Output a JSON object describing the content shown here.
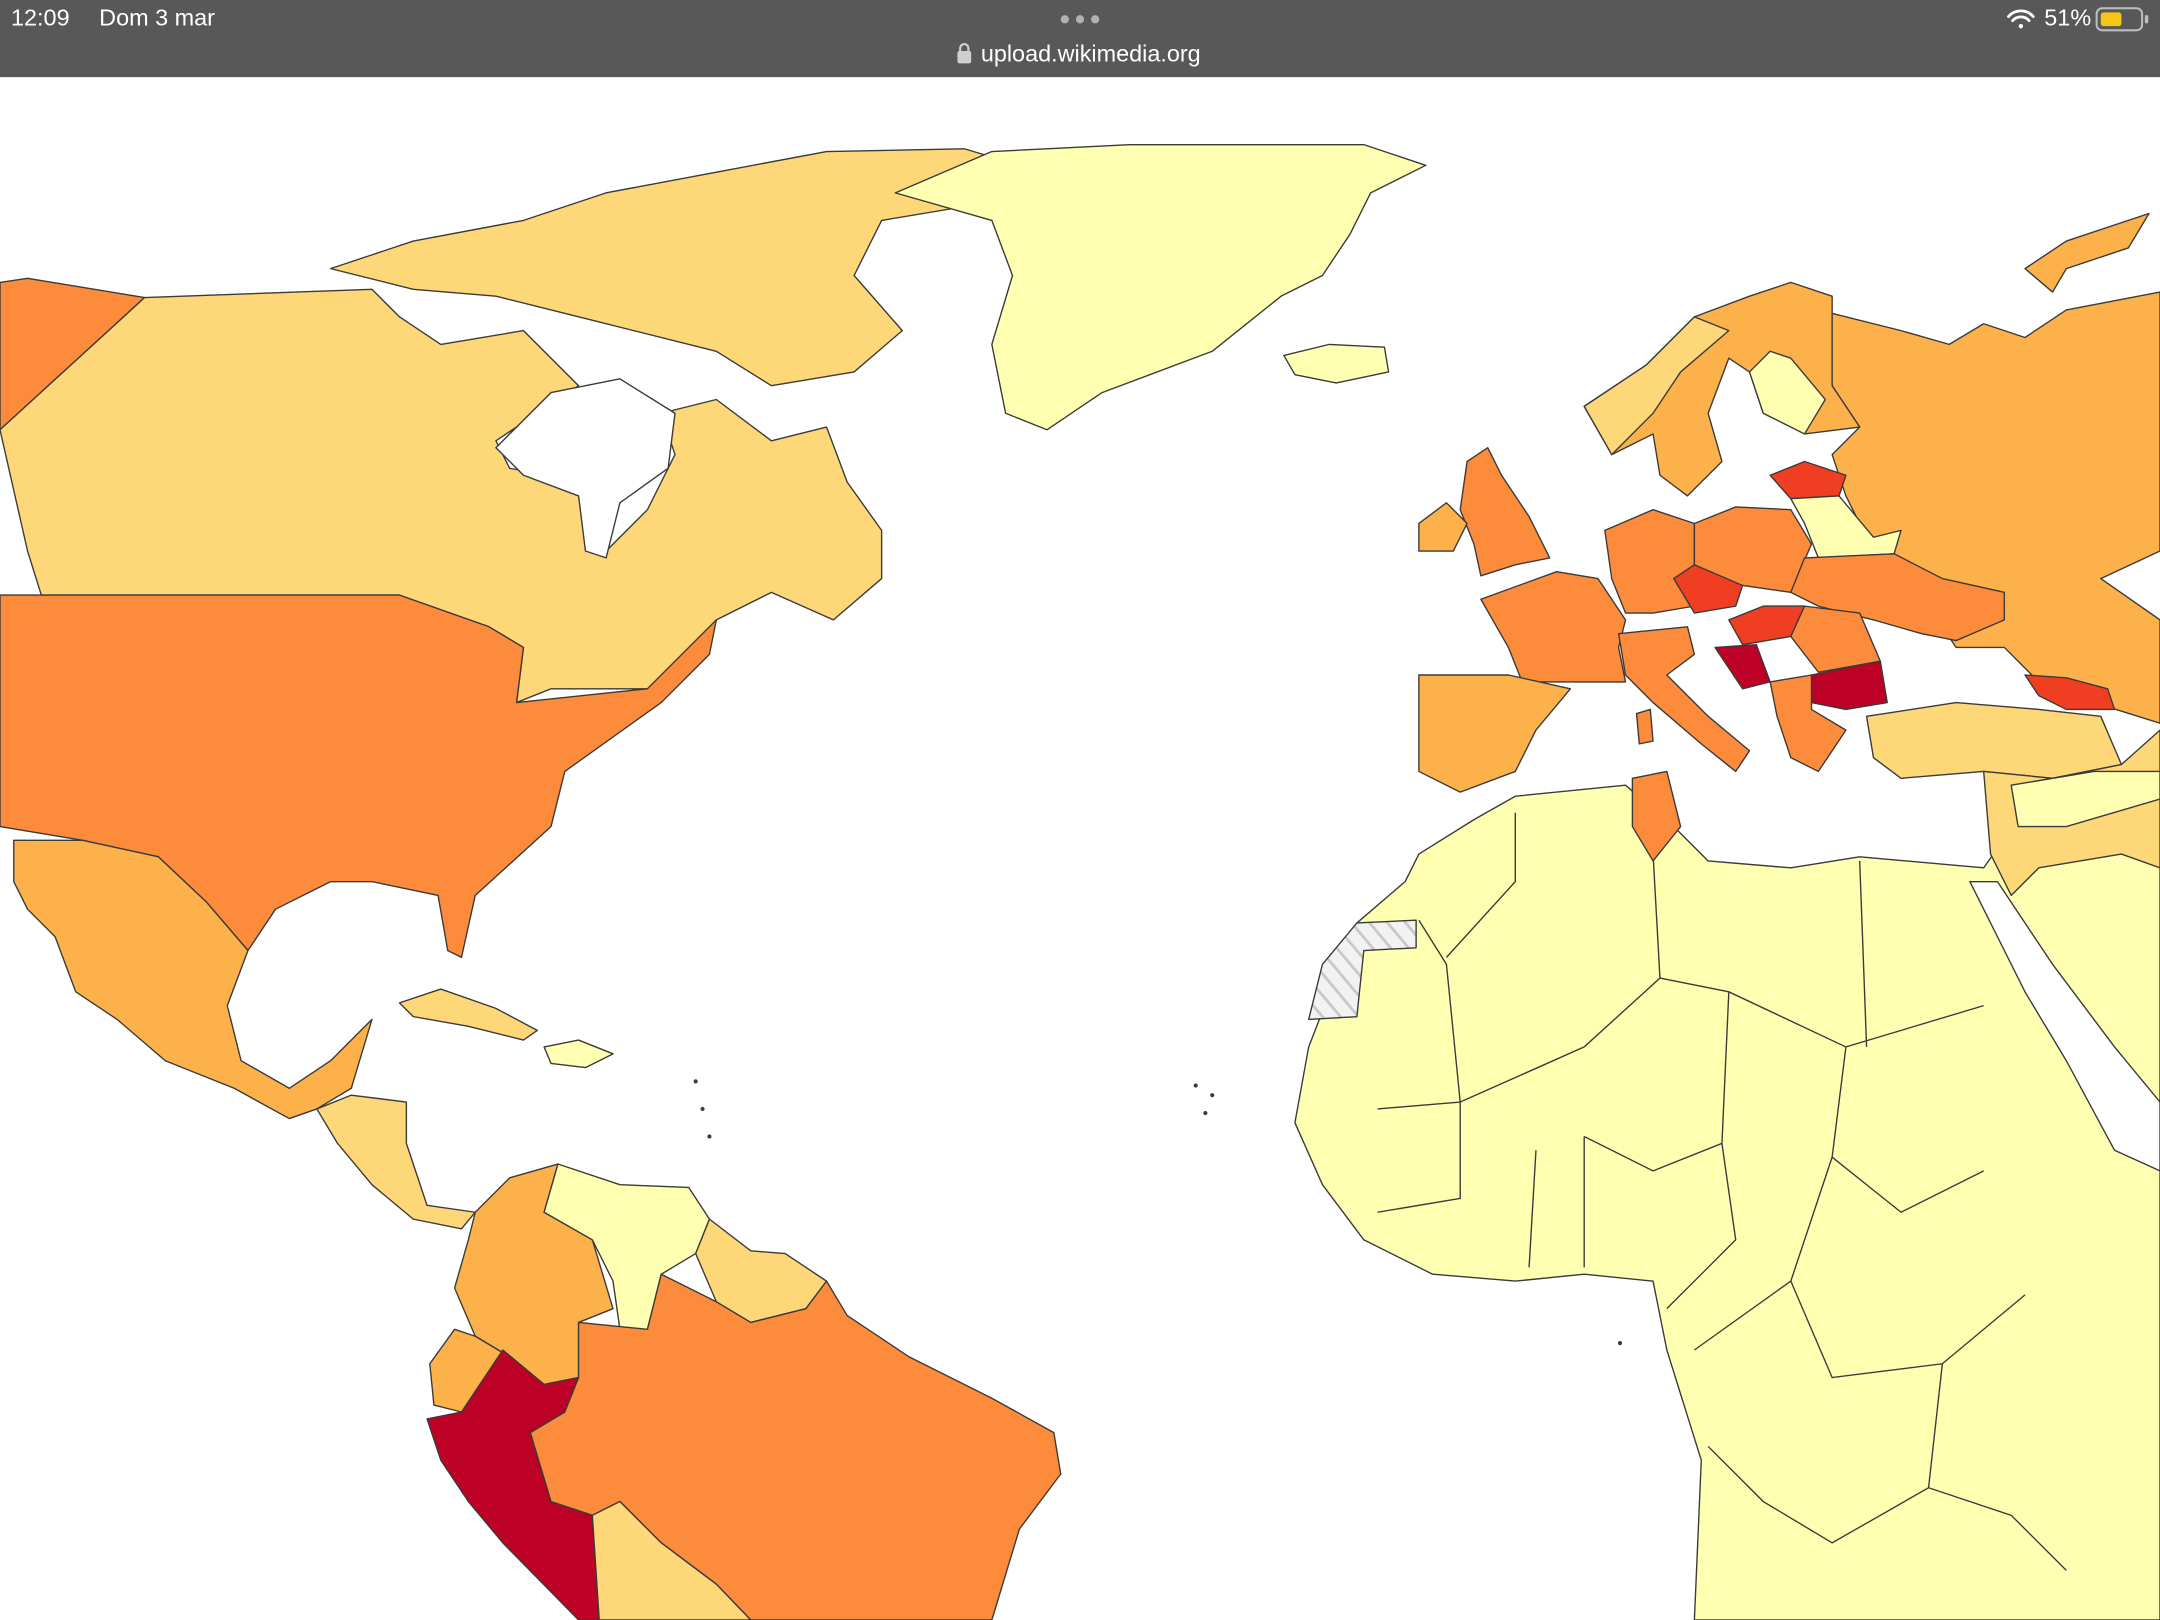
{
  "statusbar": {
    "time": "12:09",
    "date": "Dom 3 mar",
    "url": "upload.wikimedia.org",
    "battery": "51%"
  }
}
